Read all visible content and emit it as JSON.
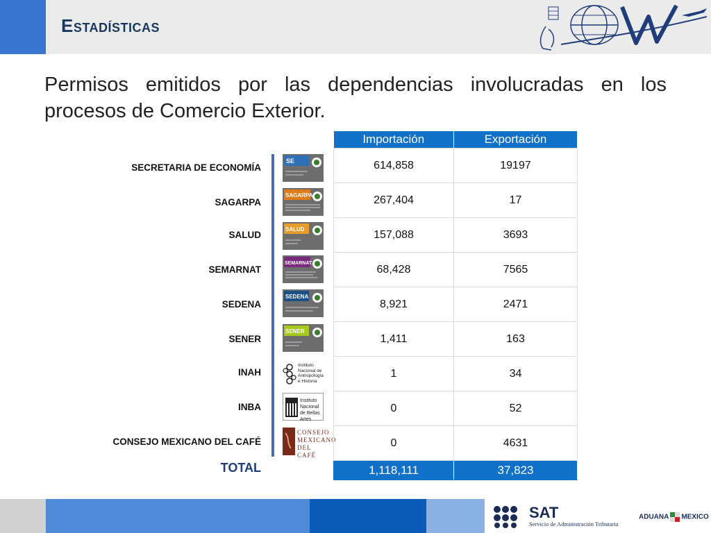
{
  "header": {
    "title": "Estadísticas"
  },
  "heading": {
    "line1": "Permisos emitidos por las dependencias involucradas en los",
    "line2": "procesos de Comercio Exterior."
  },
  "table": {
    "columns": [
      "Importación",
      "Exportación"
    ],
    "rows": [
      {
        "agency": "SECRETARIA DE ECONOMÍA",
        "logo_text": "SE",
        "logo_color": "#2e6fb5",
        "importacion": "614,858",
        "exportacion": "19197"
      },
      {
        "agency": "SAGARPA",
        "logo_text": "SAGARPA",
        "logo_color": "#e07b1a",
        "importacion": "267,404",
        "exportacion": "17"
      },
      {
        "agency": "SALUD",
        "logo_text": "SALUD",
        "logo_color": "#e89a2a",
        "importacion": "157,088",
        "exportacion": "3693"
      },
      {
        "agency": "SEMARNAT",
        "logo_text": "SEMARNAT",
        "logo_color": "#7a2a7e",
        "importacion": "68,428",
        "exportacion": "7565"
      },
      {
        "agency": "SEDENA",
        "logo_text": "SEDENA",
        "logo_color": "#1c4f86",
        "importacion": "8,921",
        "exportacion": "2471"
      },
      {
        "agency": "SENER",
        "logo_text": "SENER",
        "logo_color": "#a6c91a",
        "importacion": "1,411",
        "exportacion": "163"
      },
      {
        "agency": "INAH",
        "logo_text": "",
        "logo_color": "#ffffff",
        "importacion": "1",
        "exportacion": "34"
      },
      {
        "agency": "INBA",
        "logo_text": "",
        "logo_color": "#ffffff",
        "importacion": "0",
        "exportacion": "52"
      },
      {
        "agency": "CONSEJO MEXICANO DEL CAFÉ",
        "logo_text": "",
        "logo_color": "#ffffff",
        "importacion": "0",
        "exportacion": "4631"
      }
    ],
    "total": {
      "label": "TOTAL",
      "importacion": "1,118,111",
      "exportacion": "37,823"
    }
  },
  "logos": {
    "inah": "Instituto Nacional de Antropología e Historia",
    "inba": "Instituto Nacional de Bellas Artes",
    "cafe_l1": "CONSEJO",
    "cafe_l2": "MEXICANO",
    "cafe_l3": "DEL CAFÉ"
  },
  "footer": {
    "sat_name": "SAT",
    "sat_sub": "Servicio de Administración Tributaria",
    "aduana_left": "ADUANA",
    "aduana_right": "MEXICO"
  },
  "colors": {
    "accent": "#1170c8",
    "title": "#17375e"
  }
}
